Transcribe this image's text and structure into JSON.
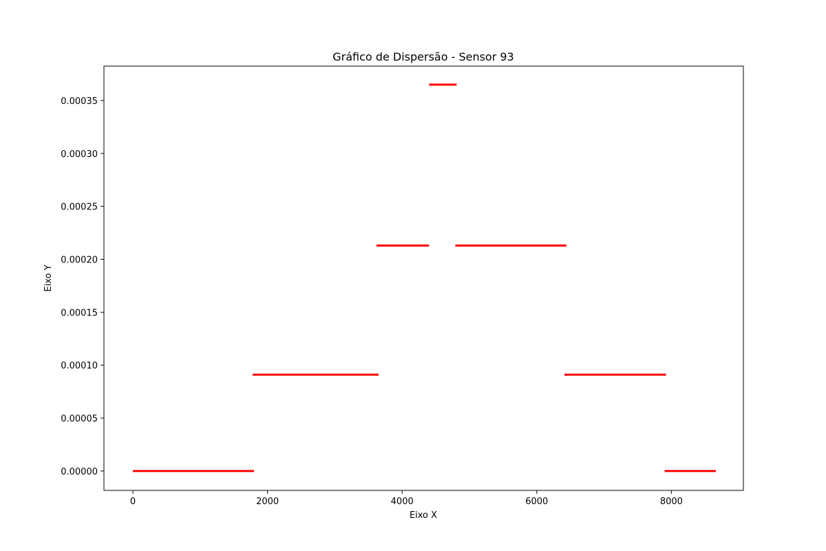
{
  "chart_data": {
    "type": "scatter",
    "title": "Gráfico de Dispersão - Sensor 93",
    "xlabel": "Eixo X",
    "ylabel": "Eixo Y",
    "xlim": [
      -430,
      9070
    ],
    "ylim": [
      -1.83e-05,
      0.0003825
    ],
    "xticks": [
      0,
      2000,
      4000,
      6000,
      8000
    ],
    "xtick_labels": [
      "0",
      "2000",
      "4000",
      "6000",
      "8000"
    ],
    "yticks": [
      0,
      5e-05,
      0.0001,
      0.00015,
      0.0002,
      0.00025,
      0.0003,
      0.00035
    ],
    "ytick_labels": [
      "0.00000",
      "0.00005",
      "0.00010",
      "0.00015",
      "0.00020",
      "0.00025",
      "0.00030",
      "0.00035"
    ],
    "grid": false,
    "color": "#ff0000",
    "series": [
      {
        "segments": [
          {
            "x_start": 0,
            "x_end": 1800,
            "y": 0
          },
          {
            "x_start": 1780,
            "x_end": 3650,
            "y": 9.1e-05
          },
          {
            "x_start": 3620,
            "x_end": 4400,
            "y": 0.000213
          },
          {
            "x_start": 4400,
            "x_end": 4810,
            "y": 0.000365
          },
          {
            "x_start": 4790,
            "x_end": 6440,
            "y": 0.000213
          },
          {
            "x_start": 6410,
            "x_end": 7920,
            "y": 9.1e-05
          },
          {
            "x_start": 7900,
            "x_end": 8660,
            "y": 0
          }
        ]
      }
    ]
  }
}
